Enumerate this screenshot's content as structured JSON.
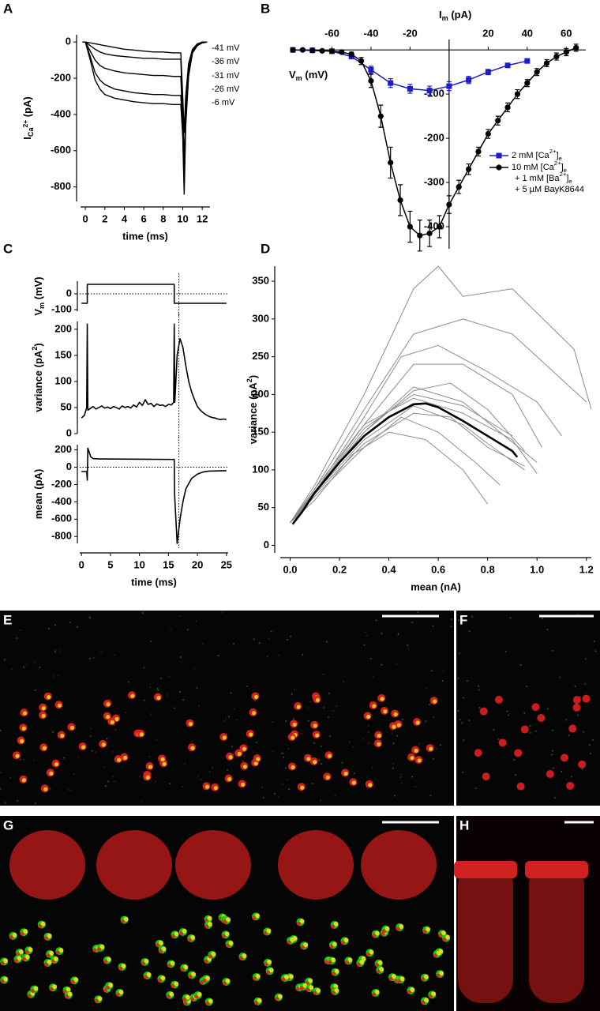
{
  "chart_data": [
    {
      "label": "A",
      "type": "line",
      "xlabel": "time (ms)",
      "ylabel": [
        [
          "I",
          ""
        ],
        [
          "Ca",
          "sub"
        ],
        [
          "2+",
          "subsup"
        ],
        [
          "  (pA)",
          ""
        ]
      ],
      "x": [
        -0.3,
        0,
        0.5,
        1,
        1.5,
        2,
        3,
        4,
        5,
        6,
        7,
        8,
        9,
        9.8,
        10,
        10.15,
        10.3,
        10.6,
        11,
        11.5,
        12,
        12.5
      ],
      "series": [
        {
          "name": "-41 mV",
          "color": "#000000",
          "values": [
            0,
            0,
            -5,
            -10,
            -15,
            -20,
            -30,
            -40,
            -45,
            -50,
            -55,
            -55,
            -60,
            -60,
            -300,
            -500,
            -300,
            -120,
            -40,
            -10,
            0,
            0
          ]
        },
        {
          "name": "-36 mV",
          "color": "#000000",
          "values": [
            0,
            0,
            -20,
            -40,
            -55,
            -65,
            -75,
            -80,
            -85,
            -90,
            -90,
            -95,
            -95,
            -95,
            -400,
            -650,
            -380,
            -150,
            -50,
            -15,
            -5,
            0
          ]
        },
        {
          "name": "-31 mV",
          "color": "#000000",
          "values": [
            0,
            0,
            -50,
            -100,
            -130,
            -145,
            -160,
            -170,
            -175,
            -180,
            -185,
            -185,
            -190,
            -190,
            -450,
            -750,
            -420,
            -170,
            -55,
            -15,
            -5,
            0
          ]
        },
        {
          "name": "-26 mV",
          "color": "#000000",
          "values": [
            0,
            0,
            -80,
            -170,
            -210,
            -235,
            -260,
            -270,
            -280,
            -285,
            -290,
            -290,
            -295,
            -295,
            -500,
            -800,
            -450,
            -180,
            -60,
            -20,
            -5,
            0
          ]
        },
        {
          "name": "-6 mV",
          "color": "#000000",
          "values": [
            0,
            0,
            -100,
            -210,
            -260,
            -290,
            -310,
            -320,
            -330,
            -335,
            -340,
            -340,
            -345,
            -345,
            -520,
            -840,
            -470,
            -190,
            -60,
            -20,
            -5,
            0
          ]
        }
      ],
      "xlim": [
        -0.5,
        12.8
      ],
      "ylim": [
        -880,
        40
      ],
      "xticks": [
        0,
        2,
        4,
        6,
        8,
        10,
        12
      ],
      "yticks": [
        -800,
        -600,
        -400,
        -200,
        0
      ]
    },
    {
      "label": "B",
      "type": "line",
      "xlabel": [
        [
          "V",
          ""
        ],
        [
          "m",
          "sub"
        ],
        [
          " (mV)",
          ""
        ]
      ],
      "ylabel": [
        [
          "I",
          ""
        ],
        [
          "m",
          "sub"
        ],
        [
          " (pA)",
          ""
        ]
      ],
      "series": [
        {
          "name": [
            [
              "2 mM [Ca",
              ""
            ],
            [
              "2+",
              "sup"
            ],
            [
              "]",
              ""
            ],
            [
              "e",
              "sub"
            ]
          ],
          "color": "#1c1cc8",
          "marker": "square",
          "x": [
            -80,
            -70,
            -60,
            -50,
            -40,
            -30,
            -20,
            -10,
            0,
            10,
            20,
            30,
            40
          ],
          "values": [
            0,
            -1,
            -3,
            -15,
            -45,
            -75,
            -88,
            -92,
            -82,
            -68,
            -50,
            -35,
            -25
          ],
          "errors": [
            2,
            2,
            3,
            4,
            8,
            10,
            10,
            10,
            10,
            8,
            6,
            4,
            3
          ]
        },
        {
          "name": [
            [
              "10 mM [Ca",
              ""
            ],
            [
              "2+",
              "sup"
            ],
            [
              "]",
              ""
            ],
            [
              "e",
              "sub"
            ]
          ],
          "name_cont": [
            [
              [
                "+ 1 mM [Ba",
                ""
              ],
              [
                "2+",
                "sup"
              ],
              [
                "]",
                ""
              ],
              [
                "e",
                "sub"
              ]
            ],
            [
              [
                "+ 5 µM BayK8644",
                ""
              ]
            ]
          ],
          "color": "#000000",
          "marker": "circle",
          "x": [
            -80,
            -75,
            -70,
            -65,
            -60,
            -55,
            -50,
            -45,
            -40,
            -35,
            -30,
            -25,
            -20,
            -15,
            -10,
            -5,
            0,
            5,
            10,
            15,
            20,
            25,
            30,
            35,
            40,
            45,
            50,
            55,
            60,
            65
          ],
          "values": [
            0,
            0,
            -1,
            -2,
            -3,
            -5,
            -10,
            -25,
            -70,
            -150,
            -255,
            -340,
            -400,
            -420,
            -415,
            -400,
            -350,
            -310,
            -270,
            -230,
            -190,
            -160,
            -130,
            -100,
            -75,
            -50,
            -30,
            -15,
            -5,
            5
          ],
          "errors": [
            2,
            2,
            2,
            2,
            3,
            3,
            5,
            8,
            15,
            25,
            35,
            35,
            35,
            35,
            30,
            25,
            20,
            15,
            12,
            10,
            10,
            10,
            10,
            10,
            8,
            8,
            8,
            8,
            8,
            8
          ]
        }
      ],
      "xlim": [
        -80,
        70
      ],
      "ylim": [
        -450,
        20
      ],
      "xticks": [
        -60,
        -40,
        -20,
        20,
        40,
        60
      ],
      "yticks": [
        -100,
        -200,
        -300,
        -400
      ]
    },
    {
      "label": "C",
      "type": "line",
      "ylabel": [
        [
          "V",
          ""
        ],
        [
          "m",
          "sub"
        ],
        [
          " (mV)",
          ""
        ]
      ],
      "series": [
        {
          "color": "#000000",
          "x": [
            0,
            1,
            1,
            16,
            16,
            25
          ],
          "values": [
            -60,
            -60,
            60,
            60,
            -60,
            -60
          ]
        }
      ],
      "xlim": [
        -0.3,
        25.3
      ],
      "ylim": [
        -110,
        80
      ],
      "yticks": [
        0,
        -100
      ],
      "hline": 0,
      "marker_x": 16.8
    },
    {
      "type": "line",
      "ylabel": [
        [
          "variance (pA",
          ""
        ],
        [
          "2",
          "sup"
        ],
        [
          ")",
          ""
        ]
      ],
      "series": [
        {
          "color": "#000000",
          "x": [
            0,
            0.5,
            0.9,
            1.0,
            1.1,
            1.5,
            2,
            2.5,
            3,
            3.5,
            4,
            4.5,
            5,
            5.5,
            6,
            6.5,
            7,
            7.5,
            8,
            8.5,
            9,
            9.5,
            10,
            10.5,
            11,
            11.5,
            12,
            12.5,
            13,
            13.5,
            14,
            14.5,
            15,
            15.5,
            15.9,
            16.0,
            16.1,
            16.5,
            17,
            17.5,
            18,
            18.5,
            19,
            19.5,
            20,
            20.5,
            21,
            21.5,
            22,
            22.5,
            23,
            23.5,
            24,
            24.5,
            25
          ],
          "values": [
            30,
            35,
            50,
            210,
            45,
            48,
            52,
            47,
            50,
            53,
            49,
            51,
            48,
            52,
            50,
            47,
            53,
            50,
            52,
            49,
            55,
            51,
            60,
            54,
            65,
            56,
            58,
            52,
            57,
            54,
            55,
            52,
            56,
            55,
            60,
            210,
            60,
            150,
            182,
            165,
            130,
            100,
            80,
            65,
            52,
            45,
            40,
            36,
            33,
            31,
            30,
            28,
            27,
            28,
            27
          ]
        }
      ],
      "xlim": [
        -0.3,
        25.3
      ],
      "ylim": [
        0,
        215
      ],
      "yticks": [
        0,
        50,
        100,
        150,
        200
      ],
      "marker_x": 16.8
    },
    {
      "type": "line",
      "xlabel": "time (ms)",
      "ylabel": [
        [
          "mean (pA)",
          ""
        ]
      ],
      "series": [
        {
          "color": "#000000",
          "x": [
            0,
            0.9,
            1.0,
            1.1,
            1.3,
            1.6,
            2,
            3,
            16,
            16.05,
            16.5,
            17,
            17.5,
            18,
            19,
            20,
            21,
            22,
            25
          ],
          "values": [
            -50,
            -50,
            -150,
            220,
            180,
            120,
            100,
            95,
            90,
            -300,
            -880,
            -600,
            -400,
            -250,
            -130,
            -80,
            -55,
            -45,
            -40
          ]
        }
      ],
      "xlim": [
        -0.3,
        25.3
      ],
      "ylim": [
        -880,
        260
      ],
      "xticks": [
        0,
        5,
        10,
        15,
        20,
        25
      ],
      "yticks": [
        200,
        0,
        -200,
        -400,
        -600,
        -800
      ],
      "hline": 0,
      "marker_x": 16.8
    },
    {
      "label": "D",
      "type": "line",
      "xlabel": "mean (nA)",
      "ylabel": [
        [
          "variance (pA",
          ""
        ],
        [
          "2",
          "sup"
        ],
        [
          ")",
          ""
        ]
      ],
      "series": [
        {
          "color": "#8c8c8c",
          "x": [
            0,
            0.1,
            0.3,
            0.5,
            0.6,
            0.7,
            0.9,
            1.15,
            1.22
          ],
          "values": [
            30,
            80,
            200,
            340,
            370,
            330,
            340,
            260,
            180
          ]
        },
        {
          "color": "#8c8c8c",
          "x": [
            0,
            0.1,
            0.3,
            0.5,
            0.7,
            0.9,
            1.1,
            1.2
          ],
          "values": [
            30,
            75,
            180,
            280,
            300,
            280,
            220,
            190
          ]
        },
        {
          "color": "#8c8c8c",
          "x": [
            0,
            0.1,
            0.3,
            0.45,
            0.6,
            0.8,
            1.0,
            1.1
          ],
          "values": [
            30,
            70,
            170,
            250,
            265,
            230,
            190,
            145
          ]
        },
        {
          "color": "#8c8c8c",
          "x": [
            0,
            0.1,
            0.3,
            0.5,
            0.7,
            0.9,
            1.02
          ],
          "values": [
            30,
            70,
            160,
            240,
            240,
            200,
            130
          ]
        },
        {
          "color": "#8c8c8c",
          "x": [
            0,
            0.1,
            0.3,
            0.5,
            0.7,
            0.85,
            1.0
          ],
          "values": [
            30,
            70,
            150,
            210,
            190,
            150,
            110
          ]
        },
        {
          "color": "#8c8c8c",
          "x": [
            0,
            0.1,
            0.3,
            0.5,
            0.7,
            0.8,
            0.95
          ],
          "values": [
            30,
            70,
            140,
            185,
            160,
            135,
            100
          ]
        },
        {
          "color": "#8c8c8c",
          "x": [
            0,
            0.1,
            0.3,
            0.45,
            0.6,
            0.75,
            0.85
          ],
          "values": [
            30,
            65,
            130,
            170,
            150,
            110,
            80
          ]
        },
        {
          "color": "#8c8c8c",
          "x": [
            0,
            0.1,
            0.25,
            0.4,
            0.55,
            0.7,
            0.8
          ],
          "values": [
            30,
            60,
            120,
            150,
            140,
            100,
            55
          ]
        },
        {
          "color": "#8c8c8c",
          "x": [
            0,
            0.1,
            0.3,
            0.5,
            0.65,
            0.8,
            0.95
          ],
          "values": [
            30,
            72,
            150,
            205,
            215,
            180,
            125
          ]
        },
        {
          "color": "#8c8c8c",
          "x": [
            0,
            0.1,
            0.3,
            0.5,
            0.65,
            0.8,
            0.95
          ],
          "values": [
            30,
            68,
            135,
            175,
            170,
            130,
            105
          ]
        },
        {
          "color": "#8c8c8c",
          "x": [
            0,
            0.1,
            0.3,
            0.5,
            0.7,
            0.9,
            1.0
          ],
          "values": [
            30,
            75,
            160,
            195,
            175,
            140,
            95
          ]
        },
        {
          "color": "#8c8c8c",
          "x": [
            0,
            0.1,
            0.3,
            0.5,
            0.7,
            0.9
          ],
          "values": [
            30,
            70,
            155,
            200,
            185,
            145
          ]
        },
        {
          "color": "#000000",
          "x": [
            0.01,
            0.05,
            0.1,
            0.2,
            0.3,
            0.4,
            0.5,
            0.55,
            0.6,
            0.7,
            0.8,
            0.9,
            0.92
          ],
          "values": [
            28,
            45,
            70,
            110,
            145,
            170,
            187,
            188,
            183,
            165,
            145,
            125,
            117
          ]
        }
      ],
      "xlim": [
        -0.04,
        1.22
      ],
      "ylim": [
        -10,
        370
      ],
      "xticks": [
        {
          "value": 0,
          "label": "0.0"
        },
        0.2,
        0.4,
        0.6,
        0.8,
        {
          "value": 1,
          "label": "1.0"
        },
        1.2
      ],
      "yticks": [
        0,
        50,
        100,
        150,
        200,
        250,
        300,
        350
      ]
    }
  ],
  "images": [
    {
      "label": "E"
    },
    {
      "label": "F"
    },
    {
      "label": "G"
    },
    {
      "label": "H"
    }
  ]
}
